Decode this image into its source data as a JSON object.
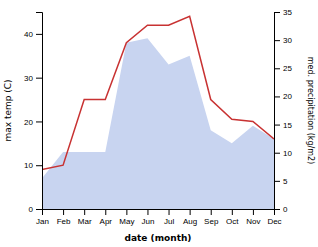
{
  "chart_data": {
    "type": "line",
    "xlabel": "date (month)",
    "ylabel": "max temp (C)",
    "y2label": "med. precipitation (kg/m2)",
    "categories": [
      "Jan",
      "Feb",
      "Mar",
      "Apr",
      "May",
      "Jun",
      "Jul",
      "Aug",
      "Sep",
      "Oct",
      "Nov",
      "Dec"
    ],
    "series": [
      {
        "type": "area",
        "color": "#c8d4f0",
        "values": [
          7.0,
          13.0,
          13.0,
          13.0,
          38.0,
          39.0,
          33.0,
          35.0,
          18.0,
          15.0,
          19.0,
          16.0
        ]
      },
      {
        "type": "line",
        "color": "#c83232",
        "values": [
          9.0,
          10.0,
          25.0,
          25.0,
          38.0,
          42.0,
          42.0,
          44.0,
          25.0,
          20.5,
          20.0,
          16.0
        ]
      }
    ],
    "ylim": [
      0,
      45
    ],
    "yticks": [
      0,
      10,
      20,
      30,
      40
    ],
    "y2lim": [
      0,
      35
    ],
    "y2ticks": [
      0,
      5,
      10,
      15,
      20,
      25,
      30,
      35
    ]
  }
}
